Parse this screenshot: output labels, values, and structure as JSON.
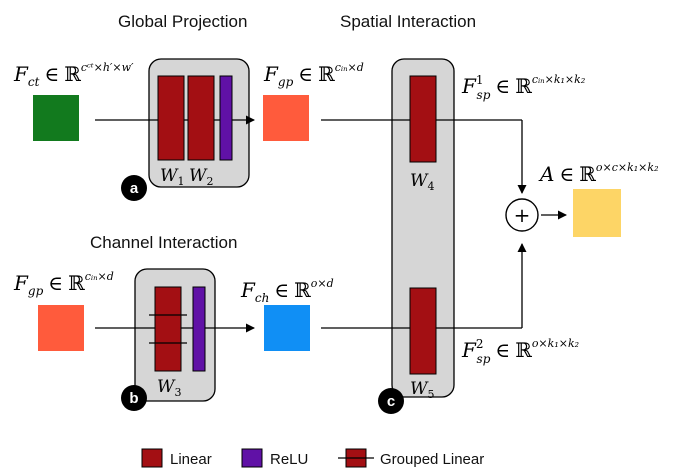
{
  "sections": {
    "global_projection": "Global Projection",
    "spatial_interaction": "Spatial Interaction",
    "channel_interaction": "Channel Interaction"
  },
  "formulas": {
    "f_ct": {
      "sym": "F",
      "sub": "ct",
      "in": "∈",
      "space": "ℝ",
      "sup": "c_ct×h′×w′"
    },
    "f_gp_top": {
      "sym": "F",
      "sub": "gp",
      "in": "∈",
      "space": "ℝ",
      "sup": "c_in×d"
    },
    "f_sp1": {
      "sym": "F",
      "sub": "sp",
      "supidx": "1",
      "in": "∈",
      "space": "ℝ",
      "sup": "c_in×k_1×k_2"
    },
    "a_out": {
      "sym": "A",
      "in": "∈",
      "space": "ℝ",
      "sup": "o×c×k_1×k_2"
    },
    "f_gp_bottom": {
      "sym": "F",
      "sub": "gp",
      "in": "∈",
      "space": "ℝ",
      "sup": "c_in×d"
    },
    "f_ch": {
      "sym": "F",
      "sub": "ch",
      "in": "∈",
      "space": "ℝ",
      "sup": "o×d"
    },
    "f_sp2": {
      "sym": "F",
      "sub": "sp",
      "supidx": "2",
      "in": "∈",
      "space": "ℝ",
      "sup": "o×k_1×k_2"
    }
  },
  "weights": {
    "w1": {
      "sym": "W",
      "sub": "1"
    },
    "w2": {
      "sym": "W",
      "sub": "2"
    },
    "w3": {
      "sym": "W",
      "sub": "3"
    },
    "w4": {
      "sym": "W",
      "sub": "4"
    },
    "w5": {
      "sym": "W",
      "sub": "5"
    }
  },
  "badges": {
    "a": "a",
    "b": "b",
    "c": "c"
  },
  "plus": "+",
  "legend": {
    "linear": "Linear",
    "relu": "ReLU",
    "grouped_linear": "Grouped Linear"
  },
  "colors": {
    "linear": "#a30f13",
    "relu": "#6011a6",
    "f_ct_square": "#127a1e",
    "f_gp_square": "#ff5b3c",
    "f_ch_square": "#108ff5",
    "a_square": "#fdd566",
    "panel": "#d6d6d6"
  }
}
